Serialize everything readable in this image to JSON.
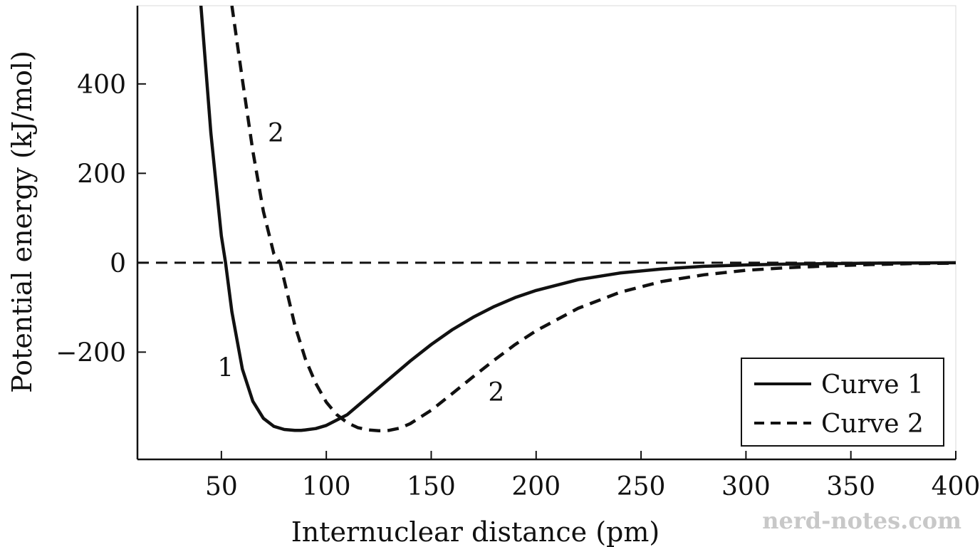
{
  "chart_data": {
    "type": "line",
    "xlabel": "Internuclear distance (pm)",
    "ylabel": "Potential energy (kJ/mol)",
    "xlim": [
      10,
      400
    ],
    "ylim": [
      -440,
      575
    ],
    "x_ticks": [
      50,
      100,
      150,
      200,
      250,
      300,
      350,
      400
    ],
    "y_ticks": [
      400,
      200,
      0,
      -200
    ],
    "y_tick_labels": [
      "400",
      "200",
      "0",
      "−200"
    ],
    "grid": false,
    "legend_position": "bottom-right",
    "series": [
      {
        "name": "Curve 1",
        "style": "solid",
        "x": [
          40,
          45,
          50,
          52,
          55,
          60,
          65,
          70,
          75,
          80,
          85,
          88,
          90,
          95,
          100,
          110,
          120,
          130,
          140,
          150,
          160,
          170,
          180,
          190,
          200,
          220,
          240,
          260,
          280,
          300,
          320,
          340,
          360,
          380,
          400
        ],
        "y": [
          590,
          290,
          60,
          0,
          -110,
          -238,
          -310,
          -348,
          -366,
          -373,
          -375,
          -375,
          -374,
          -371,
          -364,
          -340,
          -300,
          -260,
          -220,
          -183,
          -150,
          -122,
          -98,
          -78,
          -62,
          -38,
          -23,
          -14,
          -8,
          -5,
          -3,
          -2,
          -1,
          -0.5,
          0
        ]
      },
      {
        "name": "Curve 2",
        "style": "dashed",
        "x": [
          55,
          60,
          65,
          70,
          75,
          78,
          80,
          85,
          90,
          95,
          100,
          105,
          110,
          115,
          120,
          125,
          127,
          130,
          135,
          140,
          150,
          160,
          170,
          180,
          190,
          200,
          220,
          240,
          260,
          280,
          300,
          320,
          340,
          360,
          380,
          400
        ],
        "y": [
          575,
          410,
          250,
          115,
          20,
          0,
          -40,
          -140,
          -215,
          -270,
          -312,
          -340,
          -358,
          -369,
          -374,
          -376,
          -376,
          -375,
          -370,
          -360,
          -330,
          -293,
          -255,
          -218,
          -183,
          -152,
          -102,
          -66,
          -42,
          -27,
          -17,
          -11,
          -7,
          -4,
          -2,
          -1
        ]
      },
      {
        "name": "",
        "style": "dashed",
        "x": [
          10,
          400
        ],
        "y": [
          0,
          0
        ]
      }
    ],
    "annotations": [
      {
        "text": "2",
        "x": 76,
        "y": 290
      },
      {
        "text": "1",
        "x": 52,
        "y": -235
      },
      {
        "text": "2",
        "x": 181,
        "y": -290
      }
    ]
  },
  "legend": {
    "items": [
      {
        "label": "Curve 1",
        "style": "solid"
      },
      {
        "label": "Curve 2",
        "style": "dashed"
      }
    ]
  },
  "watermark": "nerd-notes.com"
}
